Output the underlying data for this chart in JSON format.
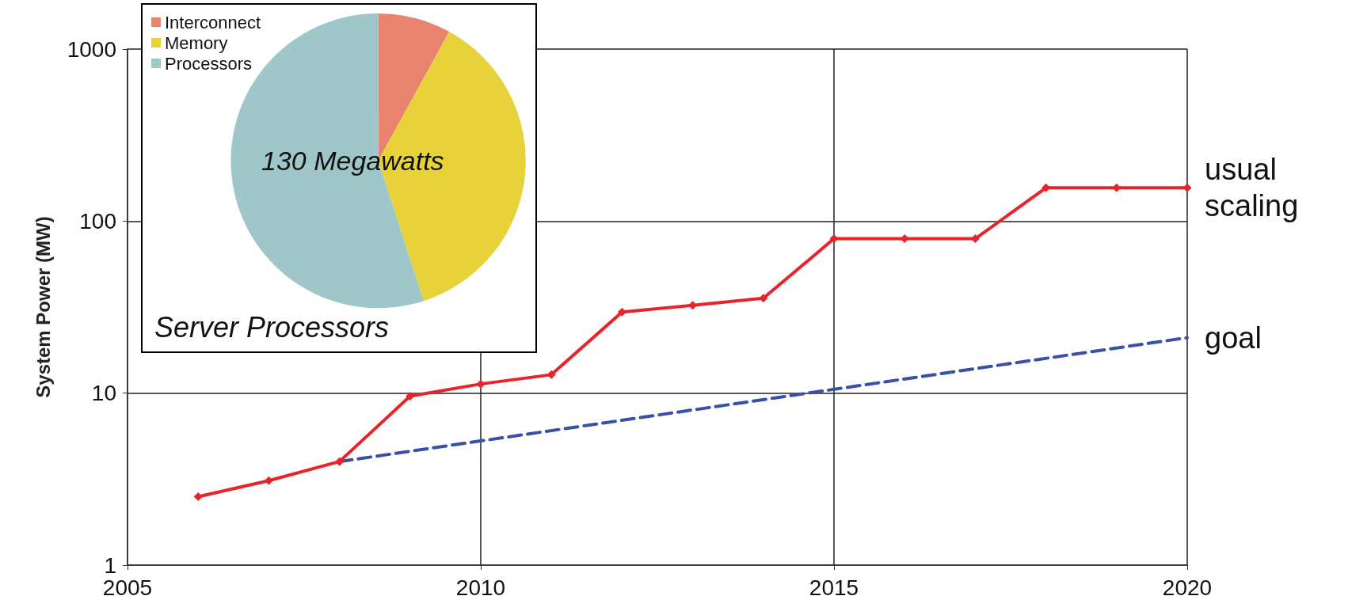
{
  "chart_data": [
    {
      "type": "line",
      "ylabel": "System Power (MW)",
      "x": [
        2006,
        2007,
        2008,
        2009,
        2010,
        2011,
        2012,
        2013,
        2014,
        2015,
        2016,
        2017,
        2018,
        2019,
        2020
      ],
      "series": [
        {
          "name": "usual scaling",
          "color": "#e8232a",
          "marker": "diamond",
          "line_style": "solid",
          "values": [
            2.5,
            3.1,
            4.0,
            9.6,
            11.3,
            12.8,
            29.6,
            32.4,
            35.6,
            79,
            79,
            79,
            156,
            156,
            156
          ]
        },
        {
          "name": "goal",
          "color": "#3a4fa8",
          "marker": "none",
          "line_style": "dashed",
          "x": [
            2008,
            2020
          ],
          "values": [
            4.0,
            21
          ]
        }
      ],
      "xlim": [
        2005,
        2020
      ],
      "xticks": [
        2005,
        2010,
        2015,
        2020
      ],
      "ylim": [
        1,
        1000
      ],
      "yticks": [
        1,
        10,
        100,
        1000
      ],
      "log": true,
      "grid": true
    },
    {
      "type": "pie",
      "title": "Server Processors",
      "annotations": [
        "130 Megawatts"
      ],
      "categories": [
        "Interconnect",
        "Memory",
        "Processors"
      ],
      "values": [
        8,
        37,
        55
      ],
      "colors": [
        "#e8836e",
        "#e8d23a",
        "#9fc6c9"
      ],
      "legend": "top left"
    }
  ]
}
